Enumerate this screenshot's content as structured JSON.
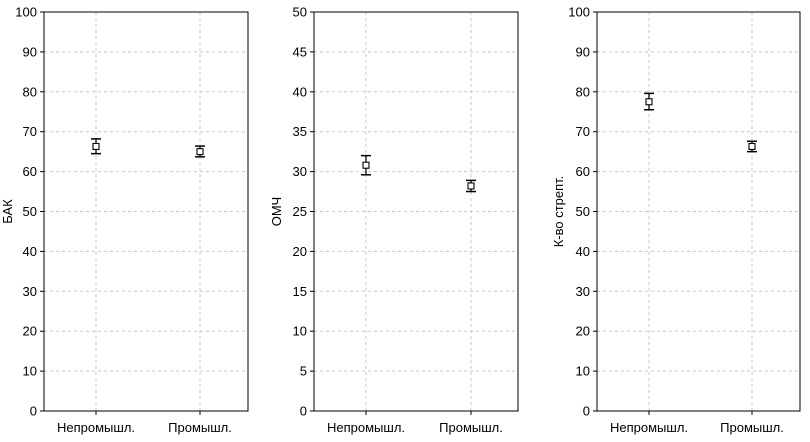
{
  "chart_data": [
    {
      "type": "scatter",
      "ylabel": "БАК",
      "ylim": [
        0,
        100
      ],
      "yticks": [
        0,
        10,
        20,
        30,
        40,
        50,
        60,
        70,
        80,
        90,
        100
      ],
      "grid": true,
      "categories": [
        "Непромышл.",
        "Промышл."
      ],
      "points": [
        {
          "category": "Непромышл.",
          "mean": 66.3,
          "low": 64.5,
          "high": 68.2
        },
        {
          "category": "Промышл.",
          "mean": 65.0,
          "low": 63.7,
          "high": 66.4
        }
      ]
    },
    {
      "type": "scatter",
      "ylabel": "ОМЧ",
      "ylim": [
        0,
        50
      ],
      "yticks": [
        0,
        5,
        10,
        15,
        20,
        25,
        30,
        35,
        40,
        45,
        50
      ],
      "grid": true,
      "categories": [
        "Непромышл.",
        "Промышл."
      ],
      "points": [
        {
          "category": "Непромышл.",
          "mean": 30.8,
          "low": 29.6,
          "high": 32.0
        },
        {
          "category": "Промышл.",
          "mean": 28.2,
          "low": 27.5,
          "high": 28.9
        }
      ]
    },
    {
      "type": "scatter",
      "ylabel": "К-во стрепт.",
      "ylim": [
        0,
        100
      ],
      "yticks": [
        0,
        10,
        20,
        30,
        40,
        50,
        60,
        70,
        80,
        90,
        100
      ],
      "grid": true,
      "categories": [
        "Непромышл.",
        "Промышл."
      ],
      "points": [
        {
          "category": "Непромышл.",
          "mean": 77.5,
          "low": 75.5,
          "high": 79.6
        },
        {
          "category": "Промышл.",
          "mean": 66.3,
          "low": 65.0,
          "high": 67.6
        }
      ]
    }
  ]
}
